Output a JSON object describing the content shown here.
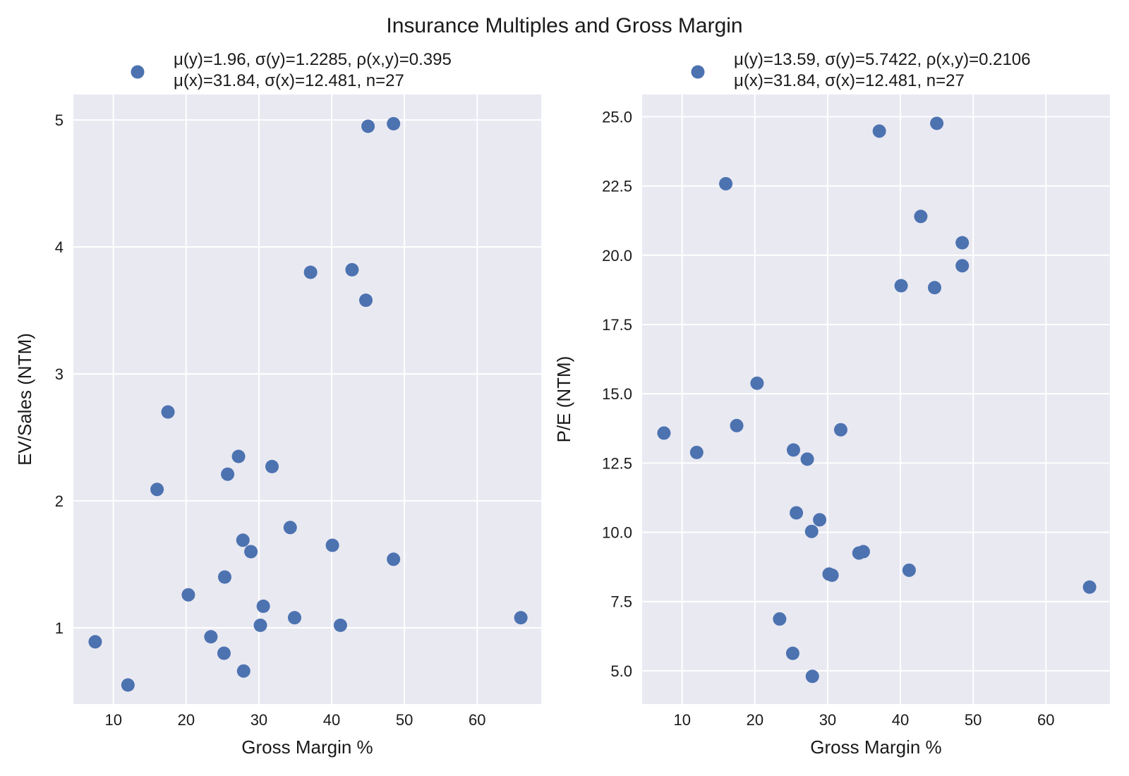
{
  "figure": {
    "title": "Insurance Multiples and Gross Margin"
  },
  "chart_data": [
    {
      "type": "scatter",
      "title": "",
      "xlabel": "Gross Margin %",
      "ylabel": "EV/Sales (NTM)",
      "xlim": [
        4.5,
        68.8
      ],
      "ylim": [
        0.4,
        5.2
      ],
      "xticks": [
        10,
        20,
        30,
        40,
        50,
        60
      ],
      "yticks": [
        1,
        2,
        3,
        4,
        5
      ],
      "ytick_labels": [
        "1",
        "2",
        "3",
        "4",
        "5"
      ],
      "grid": true,
      "legend": {
        "placement": "top",
        "line1": "μ(y)=1.96, σ(y)=1.2285, ρ(x,y)=0.395",
        "line2": "μ(x)=31.84, σ(x)=12.481, n=27",
        "marker_color": "#4c72b0"
      },
      "series": [
        {
          "color": "#4c72b0",
          "points": [
            {
              "x": 7.5,
              "y": 0.89
            },
            {
              "x": 12.0,
              "y": 0.55
            },
            {
              "x": 16.0,
              "y": 2.09
            },
            {
              "x": 17.5,
              "y": 2.7
            },
            {
              "x": 20.3,
              "y": 1.26
            },
            {
              "x": 23.4,
              "y": 0.93
            },
            {
              "x": 25.2,
              "y": 0.8
            },
            {
              "x": 25.3,
              "y": 1.4
            },
            {
              "x": 25.7,
              "y": 2.21
            },
            {
              "x": 27.2,
              "y": 2.35
            },
            {
              "x": 27.8,
              "y": 1.69
            },
            {
              "x": 27.9,
              "y": 0.66
            },
            {
              "x": 28.9,
              "y": 1.6
            },
            {
              "x": 30.2,
              "y": 1.02
            },
            {
              "x": 30.6,
              "y": 1.17
            },
            {
              "x": 31.8,
              "y": 2.27
            },
            {
              "x": 34.3,
              "y": 1.79
            },
            {
              "x": 34.9,
              "y": 1.08
            },
            {
              "x": 37.1,
              "y": 3.8
            },
            {
              "x": 40.1,
              "y": 1.65
            },
            {
              "x": 41.2,
              "y": 1.02
            },
            {
              "x": 42.8,
              "y": 3.82
            },
            {
              "x": 44.7,
              "y": 3.58
            },
            {
              "x": 45.0,
              "y": 4.95
            },
            {
              "x": 48.5,
              "y": 4.97
            },
            {
              "x": 48.5,
              "y": 1.54
            },
            {
              "x": 66.0,
              "y": 1.08
            }
          ]
        }
      ]
    },
    {
      "type": "scatter",
      "title": "",
      "xlabel": "Gross Margin %",
      "ylabel": "P/E (NTM)",
      "xlim": [
        4.5,
        68.8
      ],
      "ylim": [
        3.8,
        25.8
      ],
      "xticks": [
        10,
        20,
        30,
        40,
        50,
        60
      ],
      "yticks": [
        5.0,
        7.5,
        10.0,
        12.5,
        15.0,
        17.5,
        20.0,
        22.5,
        25.0
      ],
      "ytick_labels": [
        "5.0",
        "7.5",
        "10.0",
        "12.5",
        "15.0",
        "17.5",
        "20.0",
        "22.5",
        "25.0"
      ],
      "grid": true,
      "legend": {
        "placement": "top",
        "line1": "μ(y)=13.59, σ(y)=5.7422, ρ(x,y)=0.2106",
        "line2": "μ(x)=31.84, σ(x)=12.481, n=27",
        "marker_color": "#4c72b0"
      },
      "series": [
        {
          "color": "#4c72b0",
          "points": [
            {
              "x": 7.5,
              "y": 13.58
            },
            {
              "x": 12.0,
              "y": 12.88
            },
            {
              "x": 16.0,
              "y": 22.58
            },
            {
              "x": 17.5,
              "y": 13.85
            },
            {
              "x": 20.3,
              "y": 15.38
            },
            {
              "x": 23.4,
              "y": 6.87
            },
            {
              "x": 25.2,
              "y": 5.63
            },
            {
              "x": 25.3,
              "y": 12.97
            },
            {
              "x": 25.7,
              "y": 10.7
            },
            {
              "x": 27.2,
              "y": 12.64
            },
            {
              "x": 27.8,
              "y": 10.03
            },
            {
              "x": 27.9,
              "y": 4.8
            },
            {
              "x": 28.9,
              "y": 10.45
            },
            {
              "x": 30.2,
              "y": 8.49
            },
            {
              "x": 30.6,
              "y": 8.45
            },
            {
              "x": 31.8,
              "y": 13.7
            },
            {
              "x": 34.3,
              "y": 9.25
            },
            {
              "x": 34.9,
              "y": 9.3
            },
            {
              "x": 37.1,
              "y": 24.48
            },
            {
              "x": 40.1,
              "y": 18.9
            },
            {
              "x": 41.2,
              "y": 8.63
            },
            {
              "x": 42.8,
              "y": 21.4
            },
            {
              "x": 44.7,
              "y": 18.83
            },
            {
              "x": 45.0,
              "y": 24.76
            },
            {
              "x": 48.5,
              "y": 20.45
            },
            {
              "x": 48.5,
              "y": 19.62
            },
            {
              "x": 66.0,
              "y": 8.02
            }
          ]
        }
      ]
    }
  ]
}
